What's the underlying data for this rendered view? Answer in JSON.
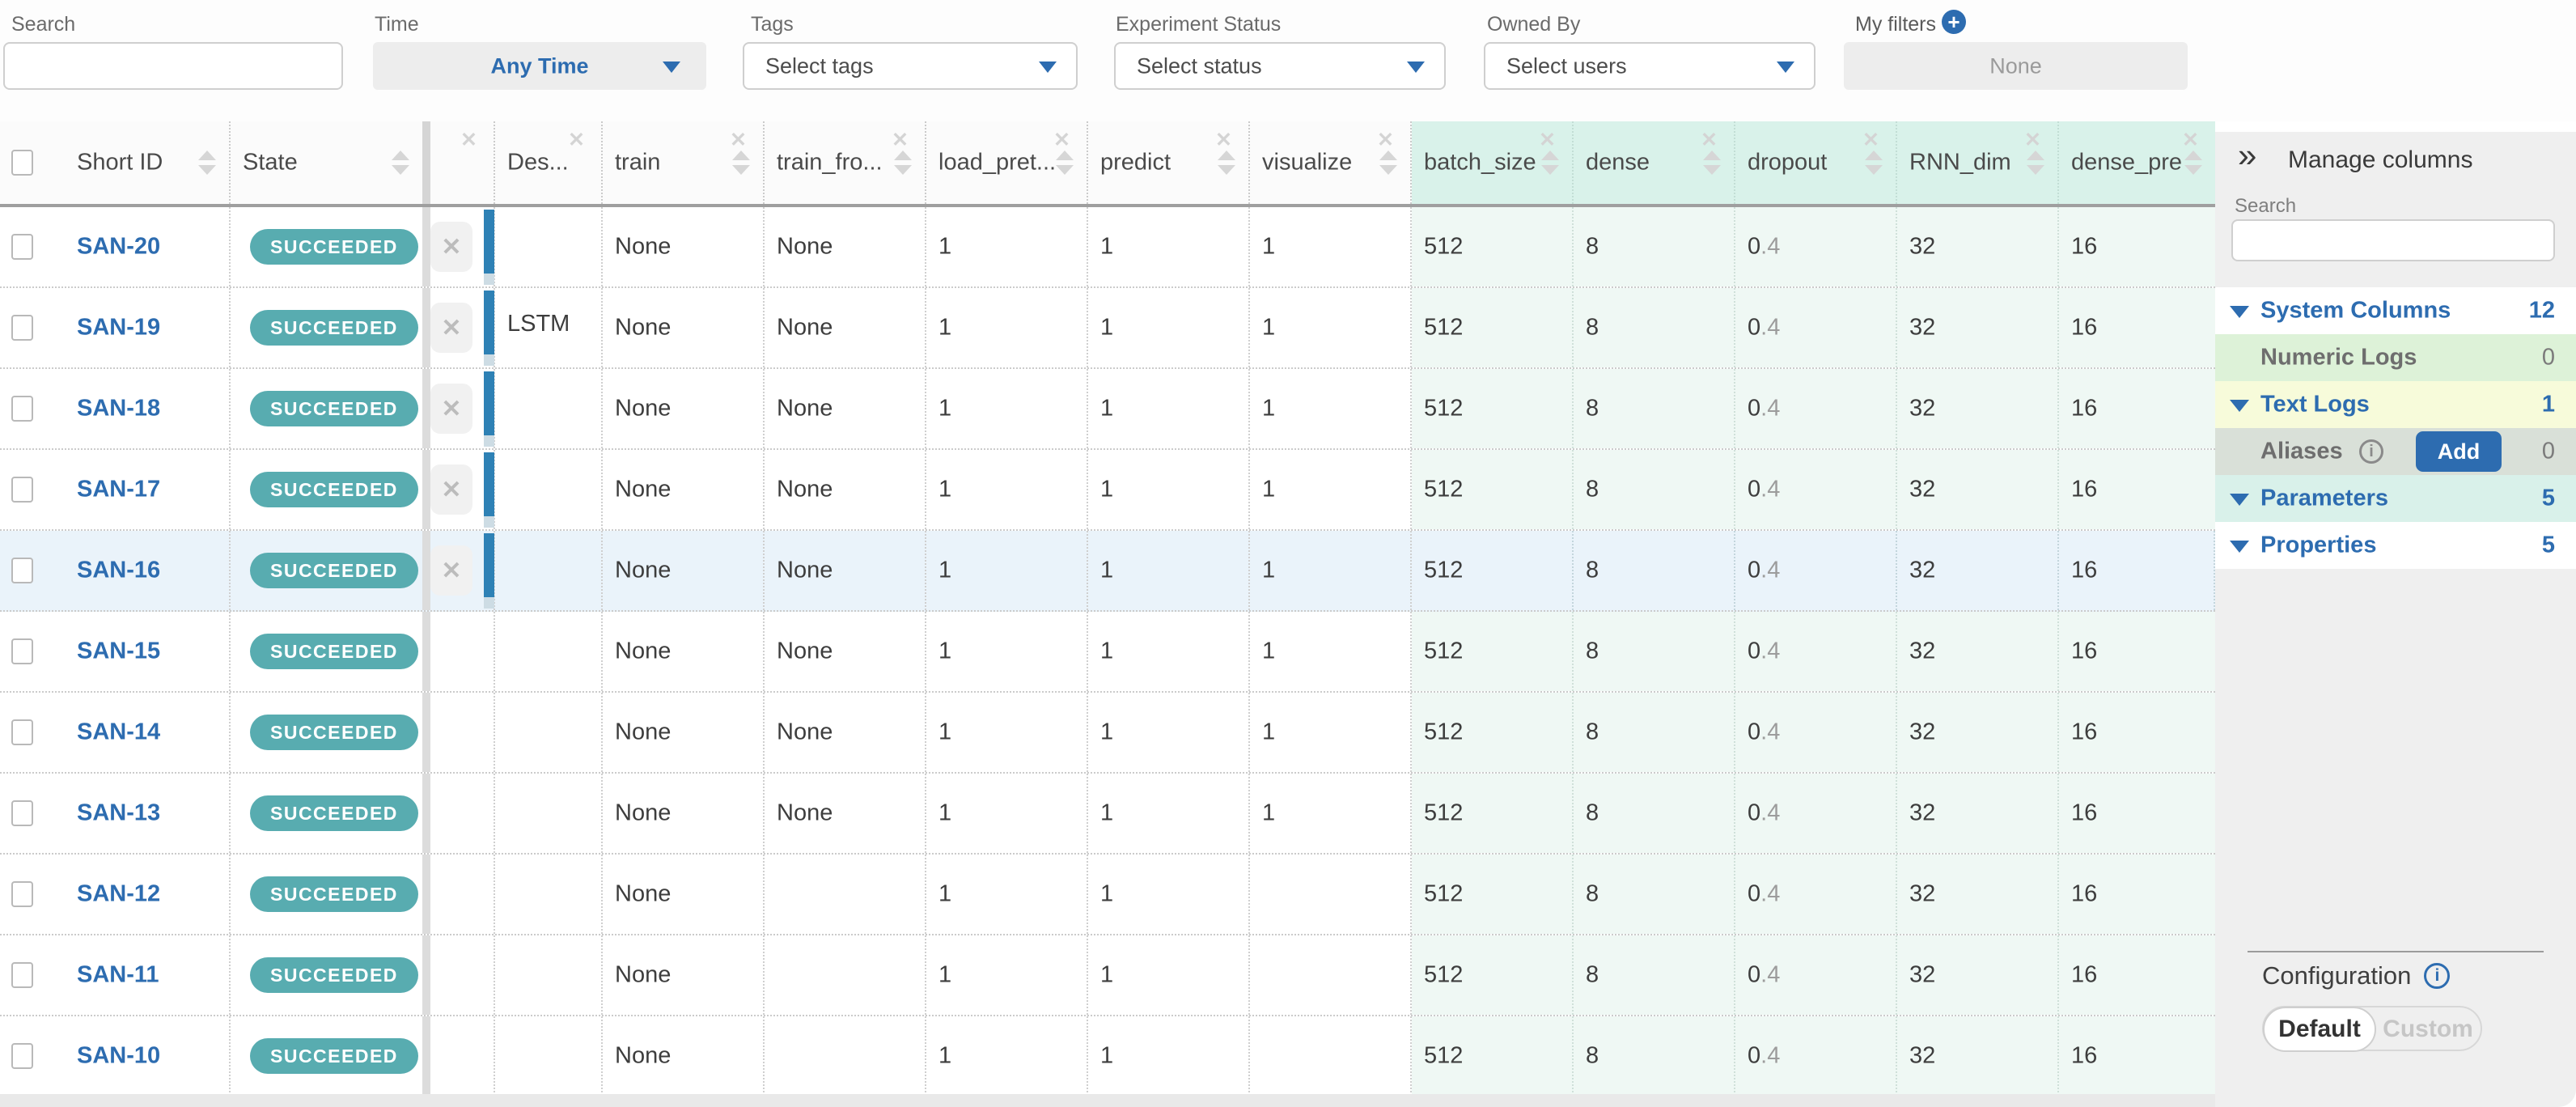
{
  "icons": {
    "close": "✕",
    "collapse": "»",
    "plus": "+",
    "info": "i",
    "dismiss": "✕"
  },
  "colors": {
    "accent_blue": "#2d6cb0",
    "succeeded_badge": "#58acb0",
    "run_color_bar": "#2e81b5",
    "param_header_bg": "#d9f2ea",
    "param_cell_bg": "#eff8f4",
    "highlight_row_bg": "#eaf3fa",
    "panel_bg": "#efefef"
  },
  "filter_bar": {
    "search": {
      "label": "Search",
      "value": ""
    },
    "time": {
      "label": "Time",
      "value": "Any Time"
    },
    "tags": {
      "label": "Tags",
      "placeholder": "Select tags"
    },
    "experiment_status": {
      "label": "Experiment Status",
      "placeholder": "Select status"
    },
    "owned_by": {
      "label": "Owned By",
      "placeholder": "Select users"
    },
    "my_filters": {
      "label": "My filters",
      "value": "None"
    }
  },
  "table": {
    "columns": [
      {
        "key": "short_id",
        "label": "Short ID",
        "sortable": true,
        "closable": false,
        "param": false
      },
      {
        "key": "state",
        "label": "State",
        "sortable": true,
        "closable": false,
        "param": false
      },
      {
        "key": "dismiss",
        "label": "",
        "sortable": false,
        "closable": true,
        "param": false
      },
      {
        "key": "desc",
        "label": "Des...",
        "sortable": false,
        "closable": true,
        "param": false
      },
      {
        "key": "train",
        "label": "train",
        "sortable": true,
        "closable": true,
        "param": false
      },
      {
        "key": "train_from",
        "label": "train_fro...",
        "sortable": true,
        "closable": true,
        "param": false
      },
      {
        "key": "load_pret",
        "label": "load_pret...",
        "sortable": true,
        "closable": true,
        "param": false
      },
      {
        "key": "predict",
        "label": "predict",
        "sortable": true,
        "closable": true,
        "param": false
      },
      {
        "key": "visualize",
        "label": "visualize",
        "sortable": true,
        "closable": true,
        "param": false
      },
      {
        "key": "batch_size",
        "label": "batch_size",
        "sortable": true,
        "closable": true,
        "param": true
      },
      {
        "key": "dense",
        "label": "dense",
        "sortable": true,
        "closable": true,
        "param": true
      },
      {
        "key": "dropout",
        "label": "dropout",
        "sortable": true,
        "closable": true,
        "param": true
      },
      {
        "key": "RNN_dim",
        "label": "RNN_dim",
        "sortable": true,
        "closable": true,
        "param": true
      },
      {
        "key": "dense_pre",
        "label": "dense_pre",
        "sortable": true,
        "closable": true,
        "param": true
      }
    ],
    "rows": [
      {
        "short_id": "SAN-20",
        "state": "SUCCEEDED",
        "dismissable": true,
        "color_bar": true,
        "highlight": false,
        "desc": "",
        "train": "None",
        "train_from": "None",
        "load_pret": "1",
        "predict": "1",
        "visualize": "1",
        "batch_size": "512",
        "dense": "8",
        "dropout_dark": "0",
        "dropout_light": ".4",
        "RNN_dim": "32",
        "dense_pre": "16"
      },
      {
        "short_id": "SAN-19",
        "state": "SUCCEEDED",
        "dismissable": true,
        "color_bar": true,
        "highlight": false,
        "desc": "LSTM",
        "train": "None",
        "train_from": "None",
        "load_pret": "1",
        "predict": "1",
        "visualize": "1",
        "batch_size": "512",
        "dense": "8",
        "dropout_dark": "0",
        "dropout_light": ".4",
        "RNN_dim": "32",
        "dense_pre": "16"
      },
      {
        "short_id": "SAN-18",
        "state": "SUCCEEDED",
        "dismissable": true,
        "color_bar": true,
        "highlight": false,
        "desc": "",
        "train": "None",
        "train_from": "None",
        "load_pret": "1",
        "predict": "1",
        "visualize": "1",
        "batch_size": "512",
        "dense": "8",
        "dropout_dark": "0",
        "dropout_light": ".4",
        "RNN_dim": "32",
        "dense_pre": "16"
      },
      {
        "short_id": "SAN-17",
        "state": "SUCCEEDED",
        "dismissable": true,
        "color_bar": true,
        "highlight": false,
        "desc": "",
        "train": "None",
        "train_from": "None",
        "load_pret": "1",
        "predict": "1",
        "visualize": "1",
        "batch_size": "512",
        "dense": "8",
        "dropout_dark": "0",
        "dropout_light": ".4",
        "RNN_dim": "32",
        "dense_pre": "16"
      },
      {
        "short_id": "SAN-16",
        "state": "SUCCEEDED",
        "dismissable": true,
        "color_bar": true,
        "highlight": true,
        "desc": "",
        "train": "None",
        "train_from": "None",
        "load_pret": "1",
        "predict": "1",
        "visualize": "1",
        "batch_size": "512",
        "dense": "8",
        "dropout_dark": "0",
        "dropout_light": ".4",
        "RNN_dim": "32",
        "dense_pre": "16"
      },
      {
        "short_id": "SAN-15",
        "state": "SUCCEEDED",
        "dismissable": false,
        "color_bar": false,
        "highlight": false,
        "desc": "",
        "train": "None",
        "train_from": "None",
        "load_pret": "1",
        "predict": "1",
        "visualize": "1",
        "batch_size": "512",
        "dense": "8",
        "dropout_dark": "0",
        "dropout_light": ".4",
        "RNN_dim": "32",
        "dense_pre": "16"
      },
      {
        "short_id": "SAN-14",
        "state": "SUCCEEDED",
        "dismissable": false,
        "color_bar": false,
        "highlight": false,
        "desc": "",
        "train": "None",
        "train_from": "None",
        "load_pret": "1",
        "predict": "1",
        "visualize": "1",
        "batch_size": "512",
        "dense": "8",
        "dropout_dark": "0",
        "dropout_light": ".4",
        "RNN_dim": "32",
        "dense_pre": "16"
      },
      {
        "short_id": "SAN-13",
        "state": "SUCCEEDED",
        "dismissable": false,
        "color_bar": false,
        "highlight": false,
        "desc": "",
        "train": "None",
        "train_from": "None",
        "load_pret": "1",
        "predict": "1",
        "visualize": "1",
        "batch_size": "512",
        "dense": "8",
        "dropout_dark": "0",
        "dropout_light": ".4",
        "RNN_dim": "32",
        "dense_pre": "16"
      },
      {
        "short_id": "SAN-12",
        "state": "SUCCEEDED",
        "dismissable": false,
        "color_bar": false,
        "highlight": false,
        "desc": "",
        "train": "None",
        "train_from": "",
        "load_pret": "1",
        "predict": "1",
        "visualize": "",
        "batch_size": "512",
        "dense": "8",
        "dropout_dark": "0",
        "dropout_light": ".4",
        "RNN_dim": "32",
        "dense_pre": "16"
      },
      {
        "short_id": "SAN-11",
        "state": "SUCCEEDED",
        "dismissable": false,
        "color_bar": false,
        "highlight": false,
        "desc": "",
        "train": "None",
        "train_from": "",
        "load_pret": "1",
        "predict": "1",
        "visualize": "",
        "batch_size": "512",
        "dense": "8",
        "dropout_dark": "0",
        "dropout_light": ".4",
        "RNN_dim": "32",
        "dense_pre": "16"
      },
      {
        "short_id": "SAN-10",
        "state": "SUCCEEDED",
        "dismissable": false,
        "color_bar": false,
        "highlight": false,
        "desc": "",
        "train": "None",
        "train_from": "",
        "load_pret": "1",
        "predict": "1",
        "visualize": "",
        "batch_size": "512",
        "dense": "8",
        "dropout_dark": "0",
        "dropout_light": ".4",
        "RNN_dim": "32",
        "dense_pre": "16"
      }
    ]
  },
  "panel": {
    "title": "Manage columns",
    "search_label": "Search",
    "sections": [
      {
        "label": "System Columns",
        "count": "12",
        "style": "white",
        "expandable": true,
        "muted": false
      },
      {
        "label": "Numeric Logs",
        "count": "0",
        "style": "green",
        "expandable": false,
        "muted": true
      },
      {
        "label": "Text Logs",
        "count": "1",
        "style": "yellow",
        "expandable": true,
        "muted": false
      },
      {
        "label": "Aliases",
        "count": "0",
        "style": "sage",
        "expandable": false,
        "muted": true,
        "info_icon": true,
        "add_label": "Add"
      },
      {
        "label": "Parameters",
        "count": "5",
        "style": "mint",
        "expandable": true,
        "muted": false
      },
      {
        "label": "Properties",
        "count": "5",
        "style": "white",
        "expandable": true,
        "muted": false
      }
    ],
    "configuration": {
      "label": "Configuration",
      "options": [
        "Default",
        "Custom"
      ],
      "selected": "Default"
    }
  }
}
